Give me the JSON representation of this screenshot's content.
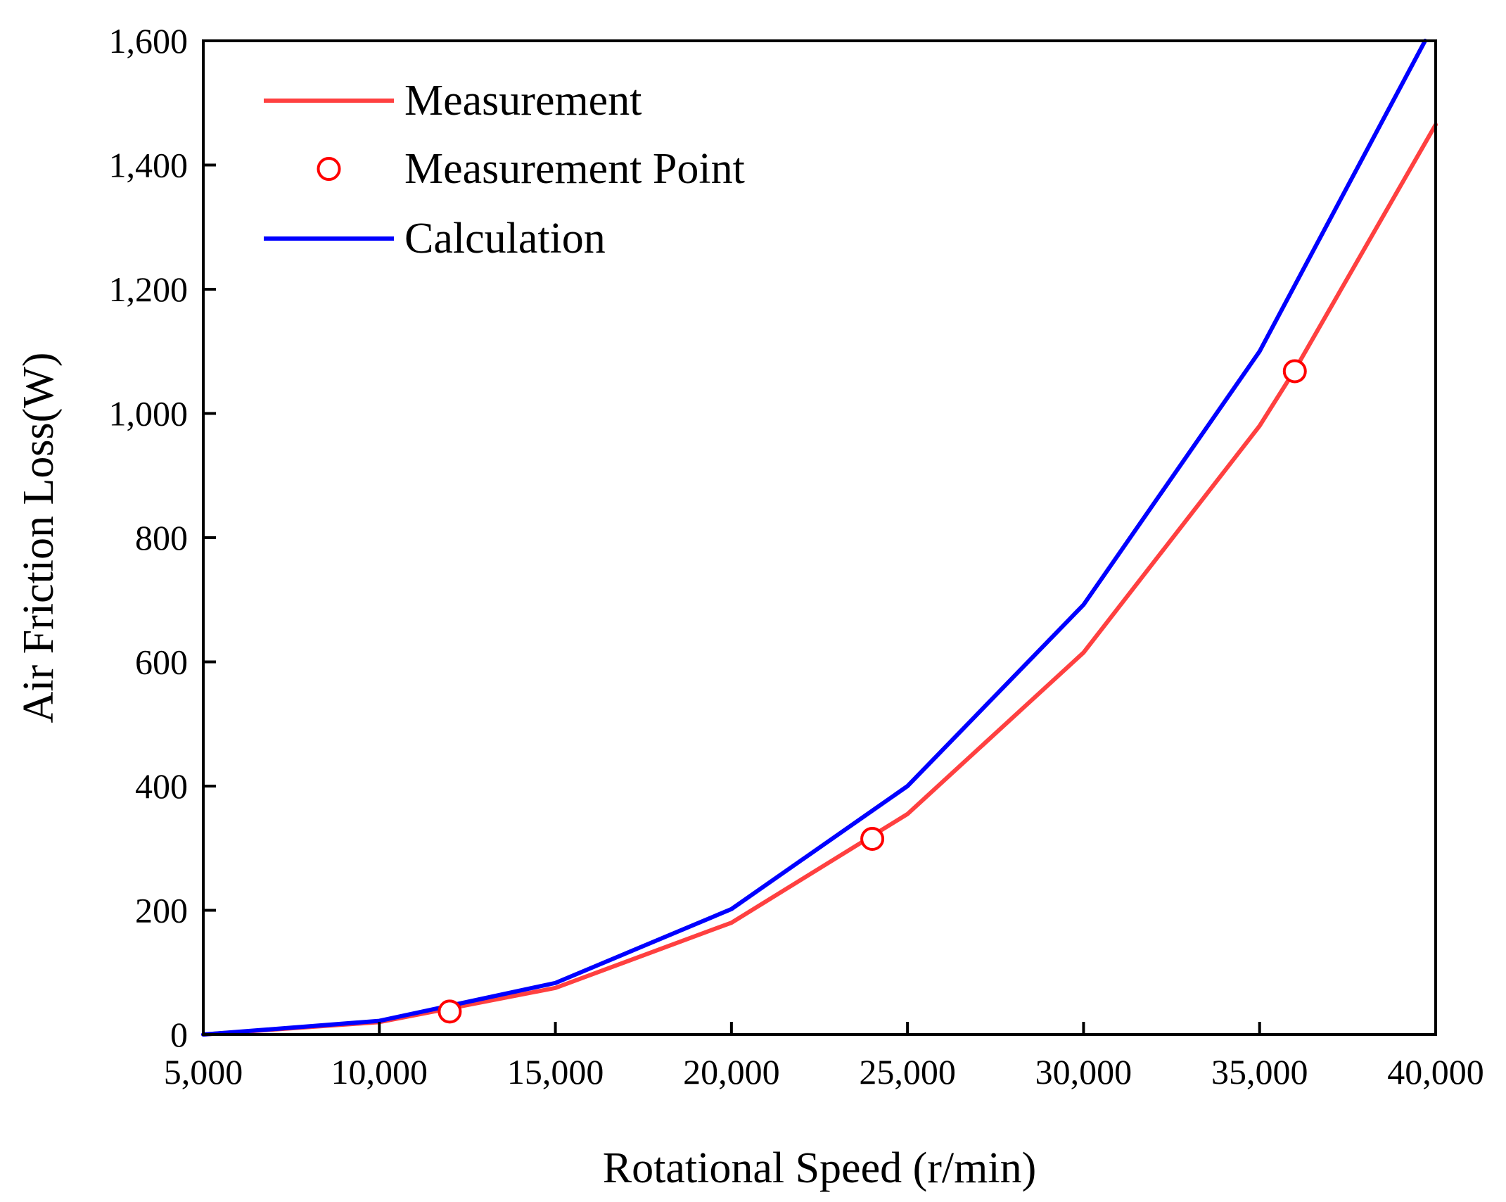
{
  "chart_data": {
    "type": "line",
    "title": "",
    "xlabel": "Rotational Speed (r/min)",
    "ylabel": "Air Friction Loss(W)",
    "xlim": [
      5000,
      40000
    ],
    "ylim": [
      0,
      1600
    ],
    "x_ticks": [
      5000,
      10000,
      15000,
      20000,
      25000,
      30000,
      35000,
      40000
    ],
    "x_tick_labels": [
      "5,000",
      "10,000",
      "15,000",
      "20,000",
      "25,000",
      "30,000",
      "35,000",
      "40,000"
    ],
    "y_ticks": [
      0,
      200,
      400,
      600,
      800,
      1000,
      1200,
      1400,
      1600
    ],
    "y_tick_labels": [
      "0",
      "200",
      "400",
      "600",
      "800",
      "1,000",
      "1,200",
      "1,400",
      "1,600"
    ],
    "grid": false,
    "legend_position": "top-left",
    "series": [
      {
        "name": "Measurement",
        "kind": "line",
        "color": "#ff4040",
        "x": [
          5000,
          10000,
          15000,
          20000,
          25000,
          30000,
          35000,
          36000,
          40000
        ],
        "y": [
          0,
          20,
          75,
          180,
          355,
          615,
          980,
          1070,
          1465
        ]
      },
      {
        "name": "Measurement Point",
        "kind": "marker",
        "color": "#ff0000",
        "x": [
          12000,
          24000,
          36000
        ],
        "y": [
          37,
          315,
          1068
        ]
      },
      {
        "name": "Calculation",
        "kind": "line",
        "color": "#0000ff",
        "x": [
          5000,
          10000,
          15000,
          20000,
          25000,
          30000,
          35000,
          39700
        ],
        "y": [
          0,
          22,
          83,
          202,
          400,
          692,
          1100,
          1600
        ]
      }
    ]
  }
}
